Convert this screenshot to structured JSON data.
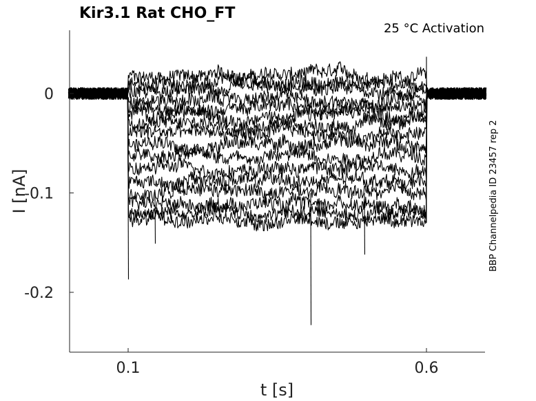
{
  "chart_data": {
    "type": "line",
    "title": "Kir3.1  Rat  CHO_FT",
    "annotation": "25 °C  Activation",
    "side_label": "BBP Channelpedia ID 23457 rep 2",
    "xlabel": "t [s]",
    "ylabel": "I [nA]",
    "xlim": [
      0.0,
      0.7
    ],
    "ylim": [
      -0.26,
      0.065
    ],
    "xticks": [
      {
        "value": 0.1,
        "label": "0.1"
      },
      {
        "value": 0.6,
        "label": "0.6"
      }
    ],
    "yticks": [
      {
        "value": 0,
        "label": "0"
      },
      {
        "value": -0.1,
        "label": "-0.1"
      },
      {
        "value": -0.2,
        "label": "-0.2"
      }
    ],
    "grid": false,
    "step_on": 0.1,
    "step_off": 0.6,
    "baseline": 0.0,
    "noise_amplitude": 0.008,
    "series": [
      {
        "steady_level": 0.018
      },
      {
        "steady_level": 0.01
      },
      {
        "steady_level": 0.002
      },
      {
        "steady_level": -0.006
      },
      {
        "steady_level": -0.014
      },
      {
        "steady_level": -0.022
      },
      {
        "steady_level": -0.03
      },
      {
        "steady_level": -0.04
      },
      {
        "steady_level": -0.05
      },
      {
        "steady_level": -0.062
      },
      {
        "steady_level": -0.075
      },
      {
        "steady_level": -0.088
      },
      {
        "steady_level": -0.1
      },
      {
        "steady_level": -0.11
      },
      {
        "steady_level": -0.12
      },
      {
        "steady_level": -0.128
      }
    ],
    "spikes": [
      {
        "x": 0.1,
        "y": -0.187
      },
      {
        "x": 0.406,
        "y": -0.233
      },
      {
        "x": 0.496,
        "y": -0.162
      },
      {
        "x": 0.145,
        "y": -0.151
      }
    ]
  }
}
